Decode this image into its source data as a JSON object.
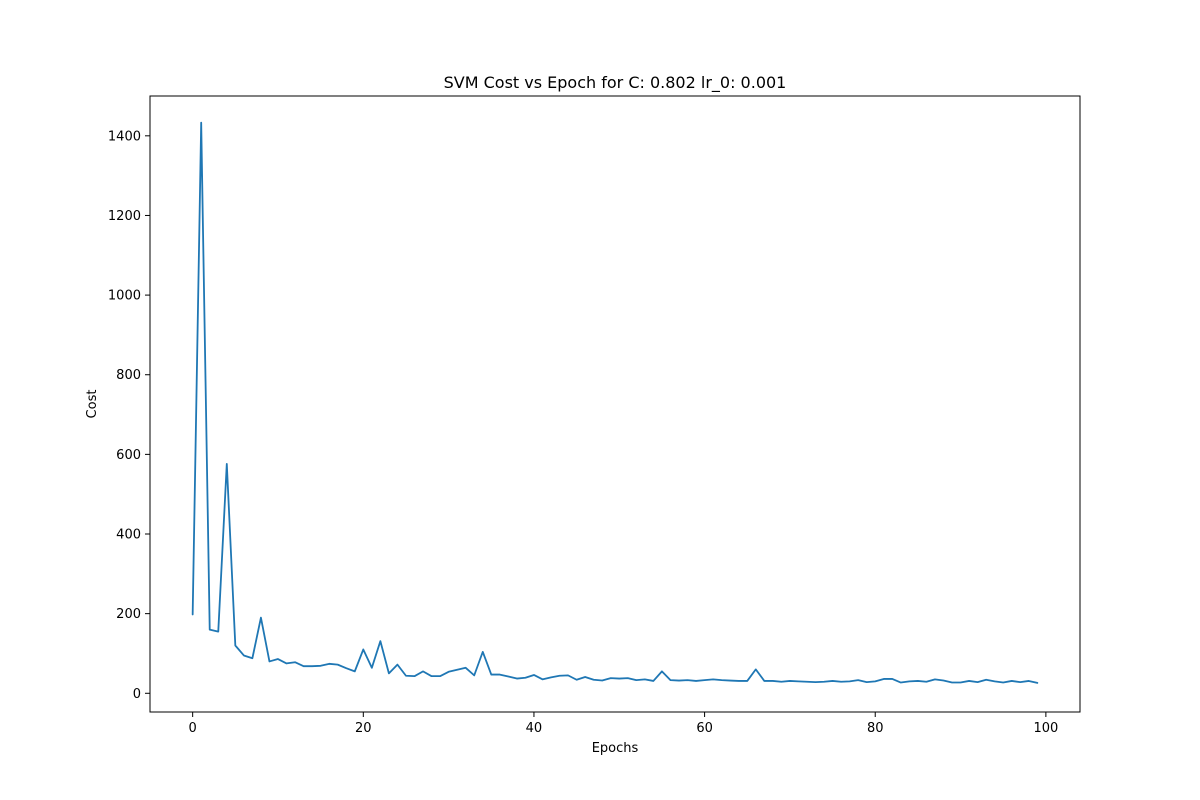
{
  "chart_data": {
    "type": "line",
    "title": "SVM Cost vs Epoch for C: 0.802 lr_0: 0.001",
    "xlabel": "Epochs",
    "ylabel": "Cost",
    "xlim": [
      -5,
      104
    ],
    "ylim": [
      -47,
      1500
    ],
    "xticks": [
      0,
      20,
      40,
      60,
      80,
      100
    ],
    "yticks": [
      0,
      200,
      400,
      600,
      800,
      1000,
      1200,
      1400
    ],
    "grid": false,
    "series": [
      {
        "color": "#1f77b4",
        "x": [
          0,
          1,
          2,
          3,
          4,
          5,
          6,
          7,
          8,
          9,
          10,
          11,
          12,
          13,
          14,
          15,
          16,
          17,
          18,
          19,
          20,
          21,
          22,
          23,
          24,
          25,
          26,
          27,
          28,
          29,
          30,
          31,
          32,
          33,
          34,
          35,
          36,
          37,
          38,
          39,
          40,
          41,
          42,
          43,
          44,
          45,
          46,
          47,
          48,
          49,
          50,
          51,
          52,
          53,
          54,
          55,
          56,
          57,
          58,
          59,
          60,
          61,
          62,
          63,
          64,
          65,
          66,
          67,
          68,
          69,
          70,
          71,
          72,
          73,
          74,
          75,
          76,
          77,
          78,
          79,
          80,
          81,
          82,
          83,
          84,
          85,
          86,
          87,
          88,
          89,
          90,
          91,
          92,
          93,
          94,
          95,
          96,
          97,
          98,
          99
        ],
        "y": [
          198,
          1433,
          160,
          155,
          576,
          120,
          95,
          88,
          190,
          80,
          86,
          75,
          78,
          68,
          68,
          69,
          74,
          72,
          63,
          55,
          110,
          64,
          131,
          50,
          72,
          44,
          43,
          55,
          43,
          43,
          54,
          59,
          64,
          45,
          104,
          47,
          47,
          42,
          37,
          39,
          46,
          35,
          40,
          44,
          45,
          34,
          41,
          34,
          32,
          38,
          37,
          38,
          33,
          35,
          31,
          55,
          33,
          32,
          33,
          31,
          33,
          35,
          33,
          32,
          31,
          31,
          60,
          31,
          31,
          29,
          31,
          30,
          29,
          28,
          29,
          31,
          29,
          30,
          33,
          28,
          30,
          36,
          36,
          27,
          30,
          31,
          29,
          35,
          32,
          27,
          27,
          31,
          28,
          34,
          30,
          27,
          31,
          28,
          31,
          26
        ]
      }
    ]
  }
}
